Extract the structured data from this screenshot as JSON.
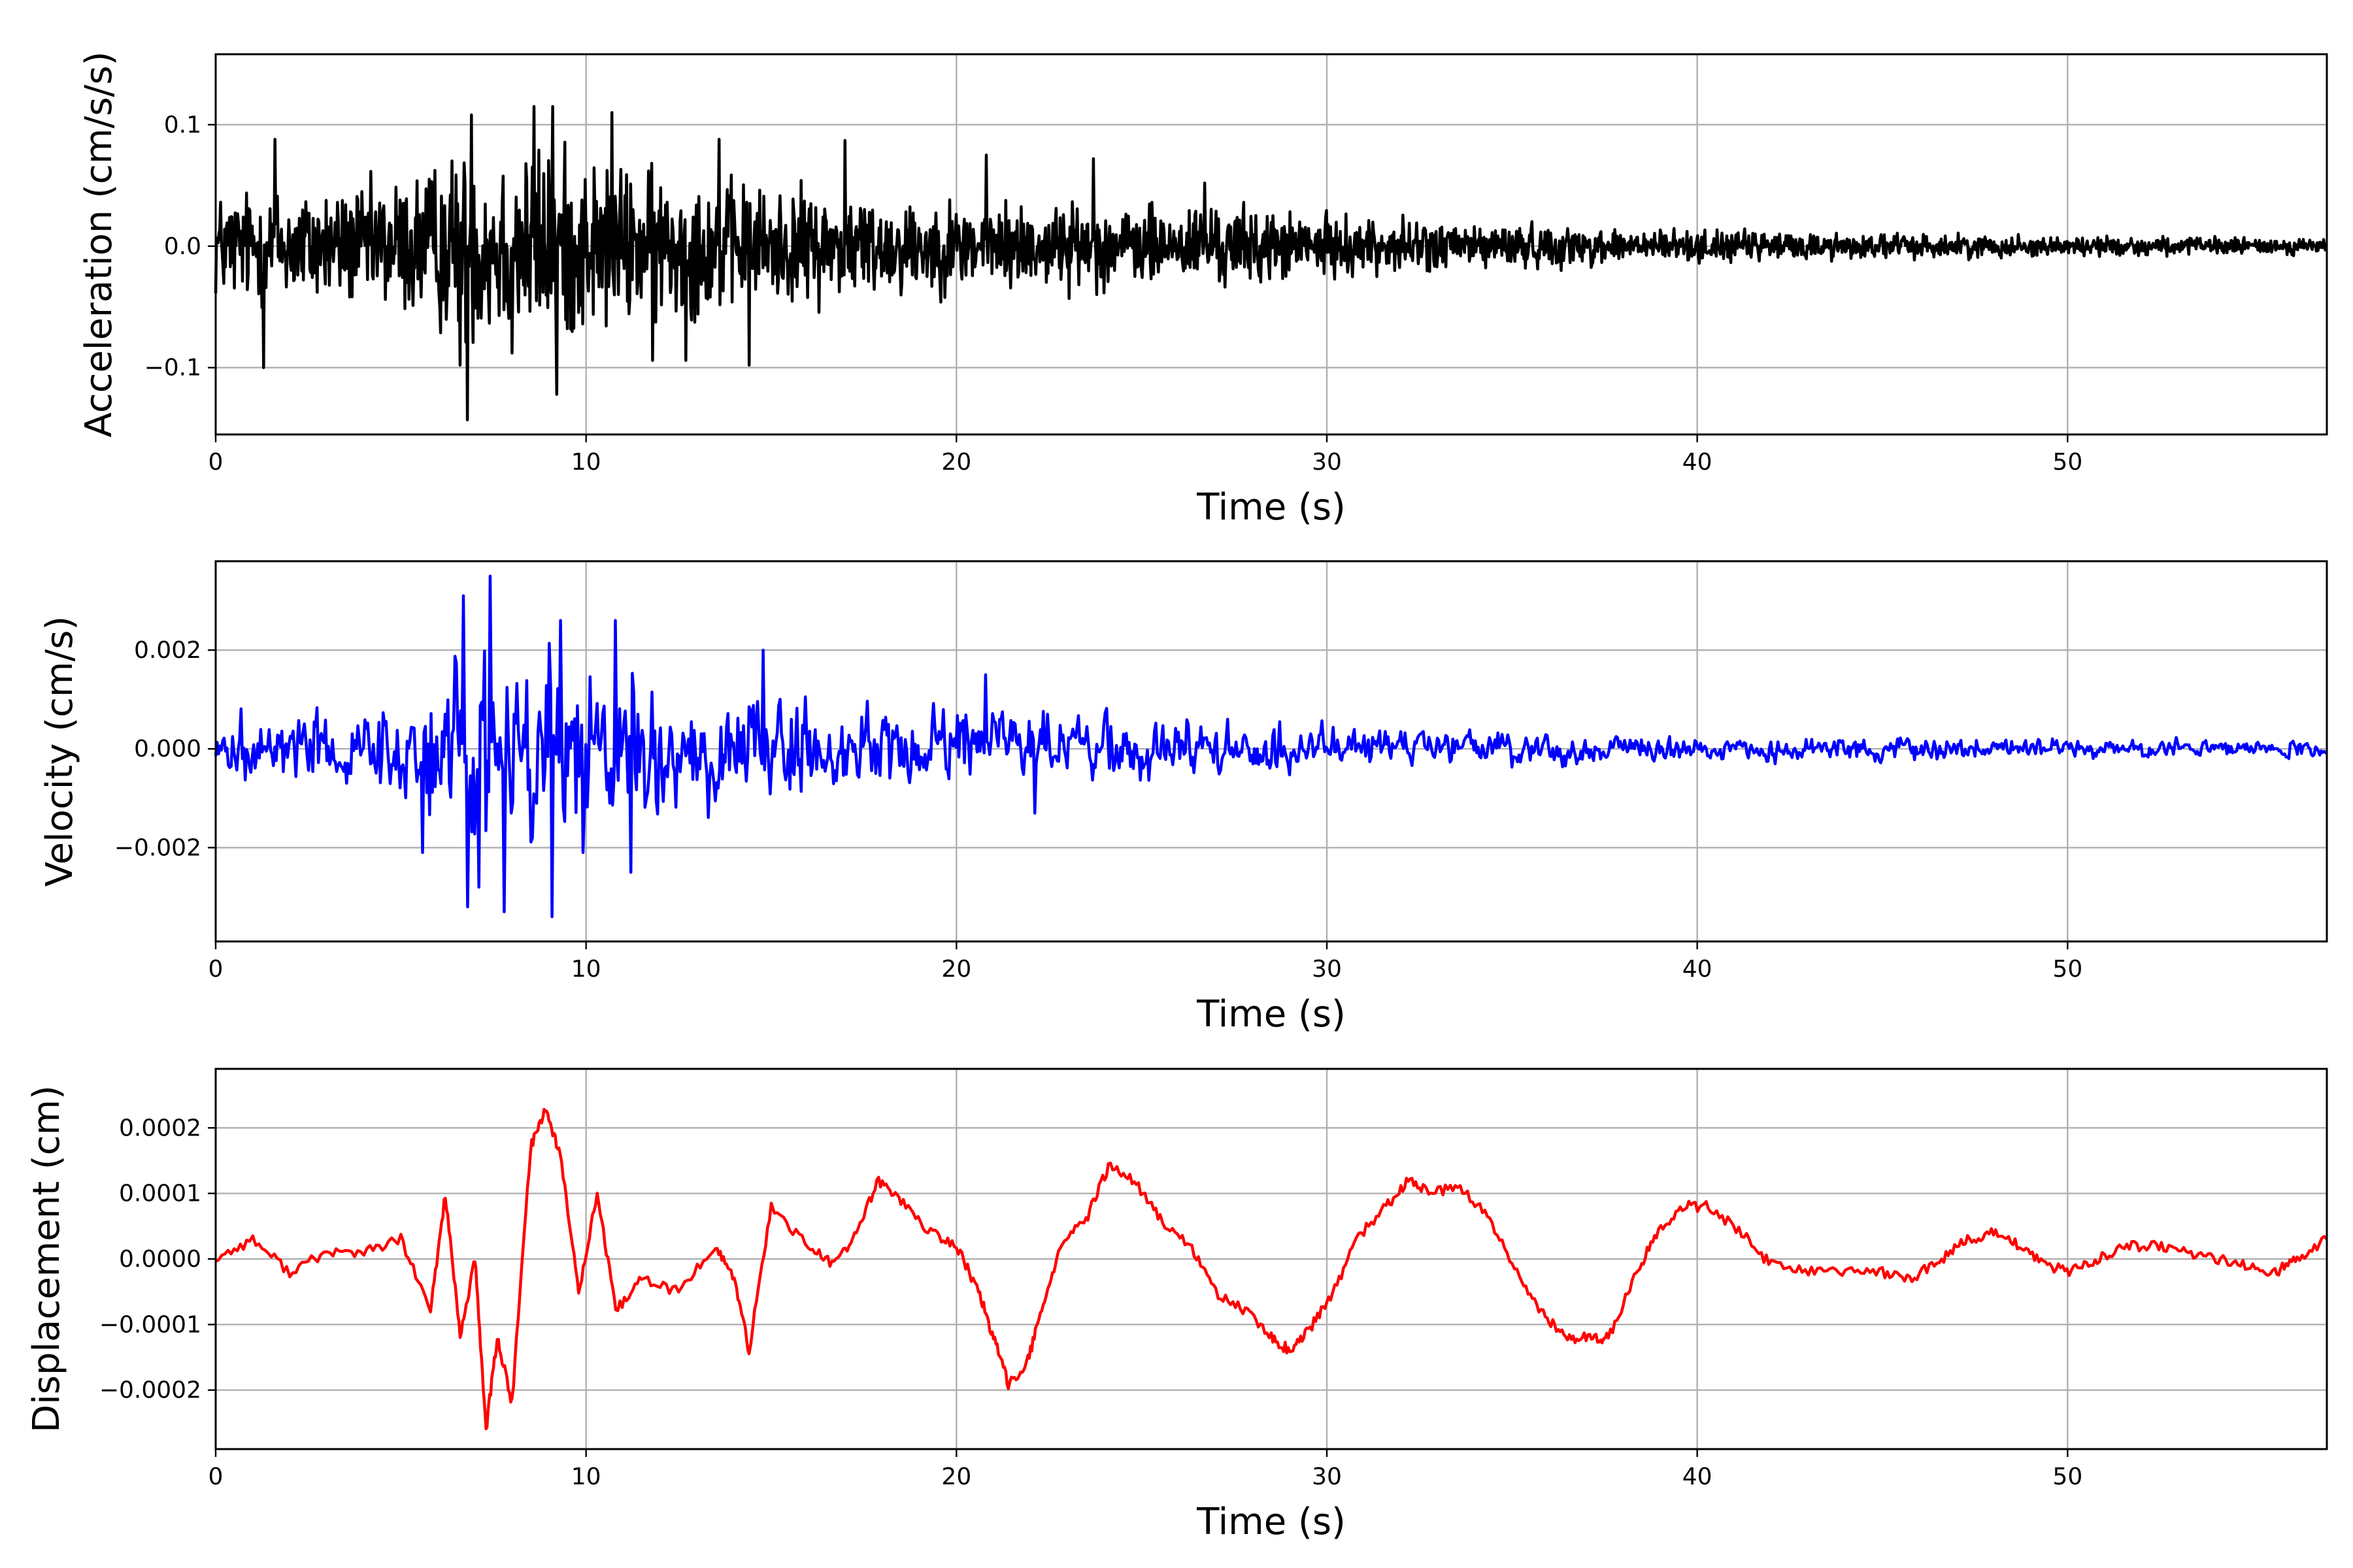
{
  "chart_data": [
    {
      "type": "line",
      "title": "",
      "xlabel": "Time (s)",
      "ylabel": "Acceleration (cm/s/s)",
      "xlim": [
        0,
        57
      ],
      "ylim": [
        -0.155,
        0.158
      ],
      "xticks": [
        0,
        10,
        20,
        30,
        40,
        50
      ],
      "xtick_labels": [
        "0",
        "10",
        "20",
        "30",
        "40",
        "50"
      ],
      "yticks": [
        -0.1,
        0.0,
        0.1
      ],
      "ytick_labels": [
        "−0.1",
        "0.0",
        "0.1"
      ],
      "grid": true,
      "color": "#000000",
      "envelope": [
        [
          0,
          0.055
        ],
        [
          2,
          0.06
        ],
        [
          4,
          0.06
        ],
        [
          6,
          0.085
        ],
        [
          7,
          0.1
        ],
        [
          9,
          0.1
        ],
        [
          11,
          0.08
        ],
        [
          15,
          0.06
        ],
        [
          20,
          0.045
        ],
        [
          25,
          0.04
        ],
        [
          27,
          0.042
        ],
        [
          30,
          0.03
        ],
        [
          35,
          0.022
        ],
        [
          40,
          0.016
        ],
        [
          45,
          0.013
        ],
        [
          50,
          0.01
        ],
        [
          57,
          0.008
        ]
      ],
      "peaks": [
        [
          1.3,
          -0.1
        ],
        [
          1.6,
          0.088
        ],
        [
          6.6,
          -0.098
        ],
        [
          6.8,
          -0.143
        ],
        [
          6.9,
          0.108
        ],
        [
          8.0,
          -0.088
        ],
        [
          8.6,
          0.115
        ],
        [
          9.1,
          0.115
        ],
        [
          9.2,
          -0.122
        ],
        [
          10.7,
          0.11
        ],
        [
          11.8,
          -0.094
        ],
        [
          12.7,
          -0.094
        ],
        [
          13.6,
          0.088
        ],
        [
          14.4,
          -0.098
        ],
        [
          17.0,
          0.087
        ],
        [
          20.8,
          0.075
        ],
        [
          23.7,
          0.072
        ],
        [
          26.7,
          0.052
        ]
      ]
    },
    {
      "type": "line",
      "title": "",
      "xlabel": "Time (s)",
      "ylabel": "Velocity (cm/s)",
      "xlim": [
        0,
        57
      ],
      "ylim": [
        -0.0039,
        0.0038
      ],
      "xticks": [
        0,
        10,
        20,
        30,
        40,
        50
      ],
      "xtick_labels": [
        "0",
        "10",
        "20",
        "30",
        "40",
        "50"
      ],
      "yticks": [
        -0.002,
        0.0,
        0.002
      ],
      "ytick_labels": [
        "−0.002",
        "0.000",
        "0.002"
      ],
      "grid": true,
      "color": "#0000ff",
      "envelope": [
        [
          0,
          0.0008
        ],
        [
          3,
          0.0009
        ],
        [
          5,
          0.0012
        ],
        [
          6.5,
          0.0025
        ],
        [
          7.5,
          0.0028
        ],
        [
          9.2,
          0.0028
        ],
        [
          11,
          0.002
        ],
        [
          14,
          0.0014
        ],
        [
          17,
          0.001
        ],
        [
          20,
          0.0009
        ],
        [
          25,
          0.0008
        ],
        [
          28,
          0.0007
        ],
        [
          30,
          0.0005
        ],
        [
          35,
          0.0004
        ],
        [
          40,
          0.0003
        ],
        [
          45,
          0.0003
        ],
        [
          50,
          0.00022
        ],
        [
          57,
          0.00018
        ]
      ],
      "peaks": [
        [
          5.6,
          -0.0021
        ],
        [
          6.7,
          0.0031
        ],
        [
          6.8,
          -0.0032
        ],
        [
          7.1,
          -0.0028
        ],
        [
          7.4,
          0.0035
        ],
        [
          7.8,
          -0.0033
        ],
        [
          9.1,
          -0.0034
        ],
        [
          9.3,
          0.0026
        ],
        [
          9.9,
          -0.0021
        ],
        [
          10.8,
          0.0026
        ],
        [
          11.2,
          -0.0025
        ],
        [
          14.8,
          0.002
        ],
        [
          20.8,
          0.0015
        ],
        [
          22.1,
          -0.0013
        ]
      ]
    },
    {
      "type": "line",
      "title": "",
      "xlabel": "Time (s)",
      "ylabel": "Displacement (cm)",
      "xlim": [
        0,
        57
      ],
      "ylim": [
        -0.00029,
        0.00029
      ],
      "xticks": [
        0,
        10,
        20,
        30,
        40,
        50
      ],
      "xtick_labels": [
        "0",
        "10",
        "20",
        "30",
        "40",
        "50"
      ],
      "yticks": [
        -0.0002,
        -0.0001,
        0.0,
        0.0001,
        0.0002
      ],
      "ytick_labels": [
        "−0.0002",
        "−0.0001",
        "0.0000",
        "0.0001",
        "0.0002"
      ],
      "grid": true,
      "color": "#ff0000",
      "x": [
        0,
        1,
        2,
        3,
        4,
        5,
        5.8,
        6.2,
        6.6,
        7.0,
        7.3,
        7.6,
        8.0,
        8.5,
        8.9,
        9.3,
        9.8,
        10.3,
        10.8,
        11.5,
        12.5,
        13.5,
        14.0,
        14.4,
        15.0,
        16.0,
        16.7,
        17.3,
        17.9,
        18.5,
        19.3,
        20.0,
        20.6,
        21.0,
        21.4,
        21.9,
        22.3,
        22.8,
        23.5,
        24.1,
        24.8,
        25.5,
        26.3,
        27.0,
        27.8,
        28.5,
        29.0,
        29.5,
        30.1,
        30.8,
        31.6,
        32.2,
        32.8,
        33.6,
        34.4,
        35.2,
        35.9,
        36.5,
        37.1,
        37.6,
        38.3,
        38.9,
        39.6,
        40.3,
        41.2,
        42.0,
        43.0,
        44.0,
        45.0,
        45.8,
        46.6,
        47.3,
        48.0,
        48.7,
        49.4,
        50.1,
        50.8,
        51.6,
        52.4,
        53.2,
        54.0,
        54.8,
        55.6,
        56.2,
        57.0
      ],
      "y": [
        0.0,
        3e-05,
        -2e-05,
        1e-05,
        1e-05,
        3e-05,
        -8e-05,
        0.0001,
        -0.00012,
        0.0,
        -0.00026,
        -0.00012,
        -0.00022,
        0.00017,
        0.00023,
        0.00016,
        -5e-05,
        0.0001,
        -8e-05,
        -3e-05,
        -5e-05,
        2e-05,
        -3e-05,
        -0.00014,
        8e-05,
        2e-05,
        -1e-05,
        4e-05,
        0.00012,
        9e-05,
        4e-05,
        2e-05,
        -5e-05,
        -0.00012,
        -0.00019,
        -0.00016,
        -8e-05,
        2e-05,
        6e-05,
        0.00014,
        0.00012,
        6e-05,
        2e-05,
        -5e-05,
        -8e-05,
        -0.00012,
        -0.00014,
        -0.00011,
        -6e-05,
        3e-05,
        8e-05,
        0.00012,
        0.0001,
        0.00011,
        6e-05,
        -3e-05,
        -9e-05,
        -0.00012,
        -0.00012,
        -0.00012,
        -3e-05,
        4e-05,
        8e-05,
        8e-05,
        4e-05,
        -1e-05,
        -2e-05,
        -2e-05,
        -2e-05,
        -3e-05,
        0.0,
        3e-05,
        4e-05,
        2e-05,
        -1e-05,
        -2e-05,
        0.0,
        2e-05,
        2e-05,
        1e-05,
        0.0,
        -1e-05,
        -2e-05,
        0.0,
        3e-05
      ]
    }
  ]
}
